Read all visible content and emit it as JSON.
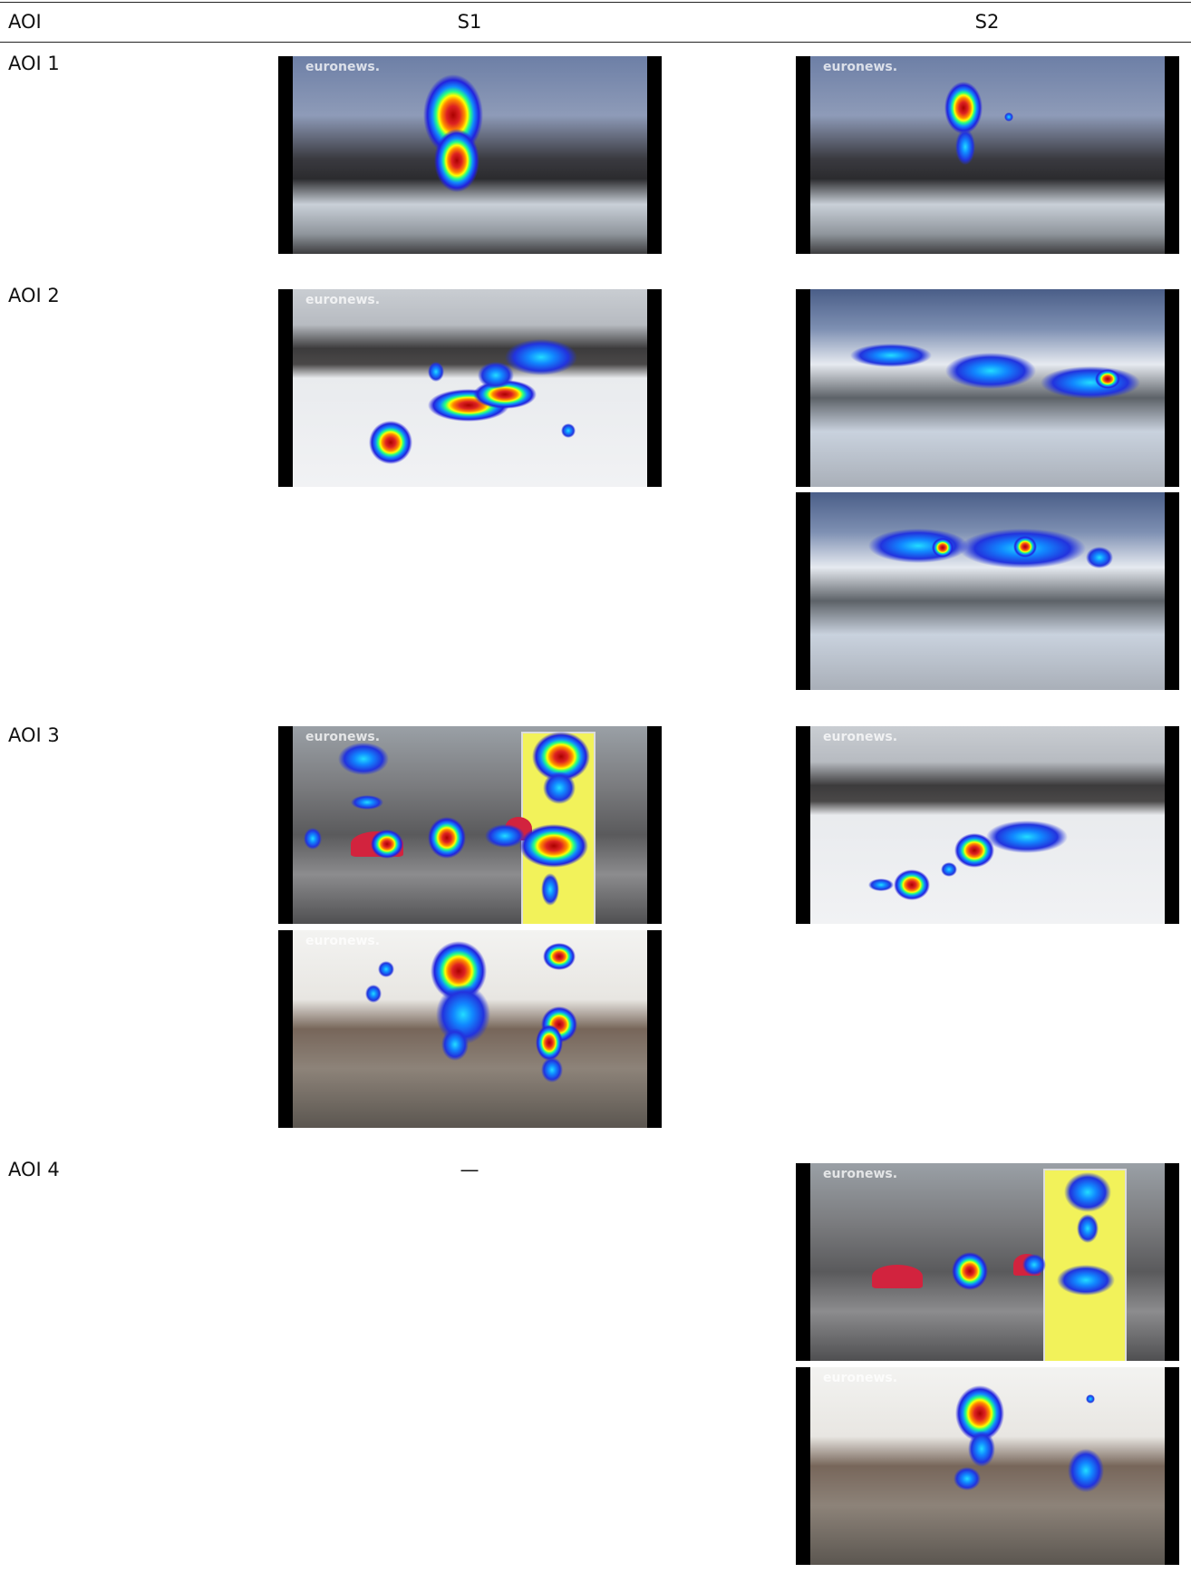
{
  "table": {
    "header": [
      "AOI",
      "S1",
      "S2"
    ],
    "rows": [
      {
        "aoi": "AOI 1"
      },
      {
        "aoi": "AOI 2"
      },
      {
        "aoi": "AOI 3"
      },
      {
        "aoi": "AOI 4",
        "s1": "—"
      }
    ]
  },
  "watermark": "euronews."
}
